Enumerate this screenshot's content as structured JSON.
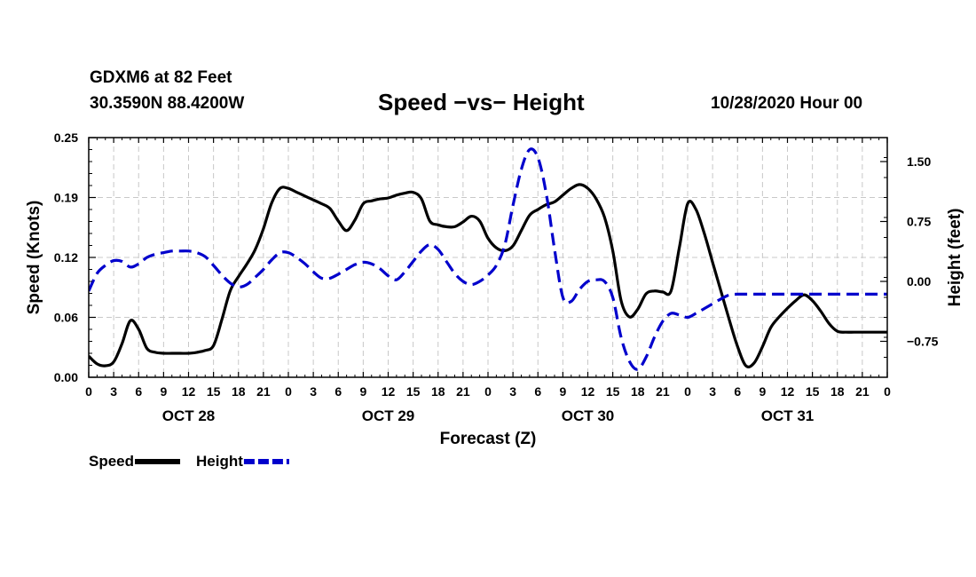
{
  "header": {
    "station": "GDXM6 at 82 Feet",
    "coords": "30.3590N 88.4200W",
    "title": "Speed −vs− Height",
    "datetime": "10/28/2020 Hour 00"
  },
  "chart_data": {
    "type": "line",
    "title": "Speed −vs− Height",
    "xlabel": "Forecast (Z)",
    "ylabel": "Speed (Knots)",
    "y2label": "Height (feet)",
    "xlim": [
      0,
      96
    ],
    "ylim": [
      0,
      0.25
    ],
    "y2lim": [
      -1.2,
      1.8
    ],
    "grid": true,
    "x_tick_values": [
      0,
      3,
      6,
      9,
      12,
      15,
      18,
      21,
      24,
      27,
      30,
      33,
      36,
      39,
      42,
      45,
      48,
      51,
      54,
      57,
      60,
      63,
      66,
      69,
      72,
      75,
      78,
      81,
      84,
      87,
      90,
      93,
      96
    ],
    "x_tick_labels": [
      "0",
      "3",
      "6",
      "9",
      "12",
      "15",
      "18",
      "21",
      "0",
      "3",
      "6",
      "9",
      "12",
      "15",
      "18",
      "21",
      "0",
      "3",
      "6",
      "9",
      "12",
      "15",
      "18",
      "21",
      "0",
      "3",
      "6",
      "9",
      "12",
      "15",
      "18",
      "21",
      "0"
    ],
    "day_labels": [
      {
        "hour": 12,
        "label": "OCT 28"
      },
      {
        "hour": 36,
        "label": "OCT 29"
      },
      {
        "hour": 60,
        "label": "OCT 30"
      },
      {
        "hour": 84,
        "label": "OCT 31"
      }
    ],
    "y_ticks": [
      {
        "value": 0.0,
        "label": "0.00"
      },
      {
        "value": 0.0625,
        "label": "0.06"
      },
      {
        "value": 0.125,
        "label": "0.12"
      },
      {
        "value": 0.1875,
        "label": "0.19"
      },
      {
        "value": 0.25,
        "label": "0.25"
      }
    ],
    "y2_ticks": [
      {
        "value": -0.75,
        "label": "−0.75"
      },
      {
        "value": 0.0,
        "label": "0.00"
      },
      {
        "value": 0.75,
        "label": "0.75"
      },
      {
        "value": 1.5,
        "label": "1.50"
      }
    ],
    "series": [
      {
        "name": "Speed",
        "axis": "left",
        "color": "#000000",
        "style": "solid",
        "x": [
          0,
          1,
          2,
          3,
          4,
          5,
          6,
          7,
          8,
          9,
          10,
          11,
          12,
          13,
          14,
          15,
          16,
          17,
          18,
          19,
          20,
          21,
          22,
          23,
          24,
          25,
          26,
          27,
          28,
          29,
          30,
          31,
          32,
          33,
          34,
          35,
          36,
          37,
          38,
          39,
          40,
          41,
          42,
          43,
          44,
          45,
          46,
          47,
          48,
          49,
          50,
          51,
          52,
          53,
          54,
          55,
          56,
          57,
          58,
          59,
          60,
          61,
          62,
          63,
          64,
          65,
          66,
          67,
          68,
          69,
          70,
          71,
          72,
          73,
          74,
          75,
          76,
          77,
          78,
          79,
          80,
          81,
          82,
          83,
          84,
          85,
          86,
          87,
          88,
          89,
          90,
          91,
          92,
          93,
          94,
          95,
          96
        ],
        "values": [
          0.022,
          0.014,
          0.012,
          0.016,
          0.035,
          0.059,
          0.05,
          0.03,
          0.026,
          0.025,
          0.025,
          0.025,
          0.025,
          0.026,
          0.028,
          0.033,
          0.06,
          0.09,
          0.105,
          0.118,
          0.133,
          0.155,
          0.182,
          0.197,
          0.197,
          0.193,
          0.189,
          0.185,
          0.181,
          0.176,
          0.163,
          0.153,
          0.164,
          0.181,
          0.184,
          0.186,
          0.187,
          0.19,
          0.192,
          0.193,
          0.186,
          0.163,
          0.159,
          0.157,
          0.157,
          0.162,
          0.168,
          0.163,
          0.145,
          0.135,
          0.132,
          0.137,
          0.153,
          0.169,
          0.175,
          0.18,
          0.183,
          0.19,
          0.197,
          0.201,
          0.197,
          0.186,
          0.167,
          0.132,
          0.08,
          0.063,
          0.071,
          0.087,
          0.09,
          0.089,
          0.09,
          0.135,
          0.181,
          0.175,
          0.15,
          0.12,
          0.09,
          0.06,
          0.032,
          0.012,
          0.015,
          0.032,
          0.052,
          0.063,
          0.072,
          0.08,
          0.086,
          0.08,
          0.069,
          0.056,
          0.048,
          0.047,
          0.047,
          0.047,
          0.047,
          0.047,
          0.047
        ]
      },
      {
        "name": "Height",
        "axis": "right",
        "color": "#0000cc",
        "style": "dashed",
        "x": [
          0,
          1,
          2,
          3,
          4,
          5,
          6,
          7,
          8,
          9,
          10,
          11,
          12,
          13,
          14,
          15,
          16,
          17,
          18,
          19,
          20,
          21,
          22,
          23,
          24,
          25,
          26,
          27,
          28,
          29,
          30,
          31,
          32,
          33,
          34,
          35,
          36,
          37,
          38,
          39,
          40,
          41,
          42,
          43,
          44,
          45,
          46,
          47,
          48,
          49,
          50,
          51,
          52,
          53,
          54,
          55,
          56,
          57,
          58,
          59,
          60,
          61,
          62,
          63,
          64,
          65,
          66,
          67,
          68,
          69,
          70,
          71,
          72,
          73,
          74,
          75,
          76,
          77,
          78,
          79,
          80,
          81,
          82,
          83,
          84,
          85,
          86,
          87,
          88,
          89,
          90,
          91,
          92,
          93,
          94,
          95,
          96
        ],
        "values": [
          -0.12,
          0.1,
          0.2,
          0.26,
          0.25,
          0.18,
          0.22,
          0.3,
          0.34,
          0.36,
          0.38,
          0.38,
          0.38,
          0.36,
          0.31,
          0.2,
          0.08,
          -0.02,
          -0.07,
          -0.04,
          0.05,
          0.15,
          0.27,
          0.36,
          0.36,
          0.3,
          0.22,
          0.12,
          0.04,
          0.04,
          0.09,
          0.15,
          0.21,
          0.24,
          0.22,
          0.16,
          0.07,
          0.02,
          0.12,
          0.25,
          0.38,
          0.46,
          0.4,
          0.25,
          0.1,
          0.0,
          -0.04,
          0.0,
          0.08,
          0.2,
          0.45,
          0.95,
          1.4,
          1.65,
          1.55,
          1.1,
          0.4,
          -0.2,
          -0.25,
          -0.1,
          0.0,
          0.02,
          0.0,
          -0.2,
          -0.7,
          -1.0,
          -1.1,
          -0.95,
          -0.7,
          -0.5,
          -0.4,
          -0.42,
          -0.45,
          -0.4,
          -0.34,
          -0.28,
          -0.22,
          -0.17,
          -0.16,
          -0.16,
          -0.16,
          -0.16,
          -0.16,
          -0.16,
          -0.16,
          -0.16,
          -0.16,
          -0.16,
          -0.16,
          -0.16,
          -0.16,
          -0.16,
          -0.16,
          -0.16,
          -0.16,
          -0.16,
          -0.16
        ]
      }
    ],
    "legend": {
      "position": "bottom-left",
      "entries": [
        "Speed",
        "Height"
      ]
    }
  }
}
